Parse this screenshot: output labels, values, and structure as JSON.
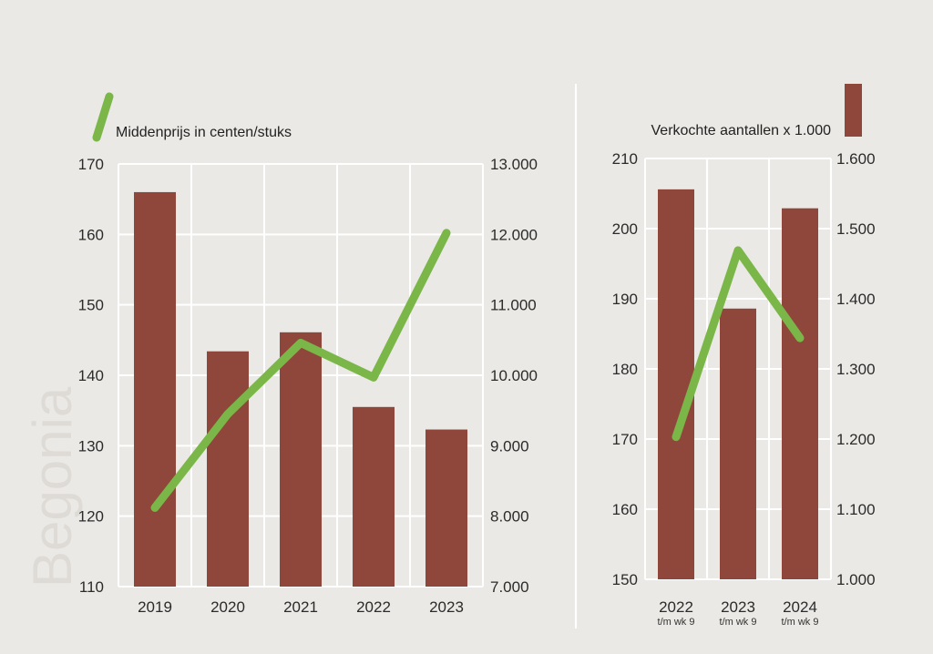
{
  "side_label": "Begonia",
  "colors": {
    "bar": "#8f463b",
    "line": "#7ab648",
    "grid": "#ffffff",
    "background": "#ebe9e5"
  },
  "chart_data": [
    {
      "type": "bar+line",
      "legend": {
        "line": "Middenprijs in centen/stuks"
      },
      "categories": [
        "2019",
        "2020",
        "2021",
        "2022",
        "2023"
      ],
      "category_sublabels": [
        "",
        "",
        "",
        "",
        ""
      ],
      "left_axis": {
        "ylim": [
          110,
          170
        ],
        "ticks": [
          "110",
          "120",
          "130",
          "140",
          "150",
          "160",
          "170"
        ]
      },
      "right_axis": {
        "ylim": [
          7000,
          13000
        ],
        "ticks": [
          "7.000",
          "8.000",
          "9.000",
          "10.000",
          "11.000",
          "12.000",
          "13.000"
        ]
      },
      "series": [
        {
          "name": "Verkochte aantallen x 1.000",
          "type": "bar",
          "axis": "right",
          "values": [
            12600,
            10340,
            10610,
            9550,
            9230
          ]
        },
        {
          "name": "Middenprijs in centen/stuks",
          "type": "line",
          "axis": "left",
          "values": [
            121.2,
            134.5,
            144.6,
            139.7,
            160.2
          ]
        }
      ],
      "grid": true
    },
    {
      "type": "bar+line",
      "legend": {
        "bar": "Verkochte aantallen x 1.000"
      },
      "categories": [
        "2022",
        "2023",
        "2024"
      ],
      "category_sublabels": [
        "t/m wk 9",
        "t/m wk 9",
        "t/m wk 9"
      ],
      "left_axis": {
        "ylim": [
          150,
          210
        ],
        "ticks": [
          "150",
          "160",
          "170",
          "180",
          "190",
          "200",
          "210"
        ]
      },
      "right_axis": {
        "ylim": [
          1000,
          1600
        ],
        "ticks": [
          "1.000",
          "1.100",
          "1.200",
          "1.300",
          "1.400",
          "1.500",
          "1.600"
        ]
      },
      "series": [
        {
          "name": "Verkochte aantallen x 1.000",
          "type": "bar",
          "axis": "right",
          "values": [
            1556,
            1386,
            1529
          ]
        },
        {
          "name": "Middenprijs in centen/stuks",
          "type": "line",
          "axis": "left",
          "values": [
            170.3,
            196.9,
            184.4
          ]
        }
      ],
      "grid": true
    }
  ]
}
